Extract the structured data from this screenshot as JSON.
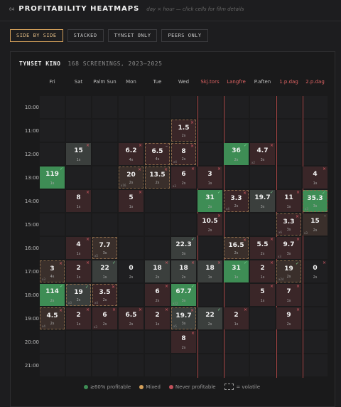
{
  "header": {
    "section_num": "04",
    "title": "PROFITABILITY HEATMAPS",
    "subtitle": "day × hour — click cells for film details"
  },
  "tabs": [
    {
      "label": "SIDE BY SIDE",
      "active": true
    },
    {
      "label": "STACKED",
      "active": false
    },
    {
      "label": "TYNSET ONLY",
      "active": false
    },
    {
      "label": "PEERS ONLY",
      "active": false
    }
  ],
  "panel": {
    "title": "TYNSET KINO",
    "meta": "168 SCREENINGS, 2023–2025"
  },
  "columns": [
    {
      "label": "Fri",
      "hl": false
    },
    {
      "label": "Sat",
      "hl": false
    },
    {
      "label": "Palm Sun",
      "hl": false
    },
    {
      "label": "Mon",
      "hl": false
    },
    {
      "label": "Tue",
      "hl": false
    },
    {
      "label": "Wed",
      "hl": false
    },
    {
      "label": "Skj.tors",
      "hl": true
    },
    {
      "label": "Langfre",
      "hl": true
    },
    {
      "label": "P.aften",
      "hl": false
    },
    {
      "label": "1.p.dag",
      "hl": true
    },
    {
      "label": "2.p.dag",
      "hl": true
    }
  ],
  "hl_line_columns": [
    6,
    7,
    9,
    10
  ],
  "rows": [
    "10:00",
    "11:00",
    "12:00",
    "13:00",
    "14:00",
    "15:00",
    "16:00",
    "17:00",
    "18:00",
    "19:00",
    "20:00",
    "21:00"
  ],
  "cells": [
    {
      "r": 1,
      "c": 5,
      "v": "1.5",
      "n": "2s",
      "type": "loss",
      "mark": "x",
      "vol": true
    },
    {
      "r": 2,
      "c": 1,
      "v": "15",
      "n": "1s",
      "type": "gray",
      "mark": "x",
      "vol": false
    },
    {
      "r": 2,
      "c": 3,
      "v": "6.2",
      "n": "4s",
      "type": "loss",
      "mark": "x",
      "vol": false
    },
    {
      "r": 2,
      "c": 4,
      "v": "6.5",
      "n": "4s",
      "type": "loss",
      "mark": "d",
      "vol": true
    },
    {
      "r": 2,
      "c": 5,
      "v": "8",
      "n": "2s",
      "type": "loss",
      "mark": "x",
      "vol": true,
      "t": "x4"
    },
    {
      "r": 2,
      "c": 7,
      "v": "36",
      "n": "2s",
      "type": "profit",
      "mark": "c",
      "vol": false
    },
    {
      "r": 2,
      "c": 8,
      "v": "4.7",
      "n": "3s",
      "type": "loss",
      "mark": "x",
      "vol": false,
      "t": "x2"
    },
    {
      "r": 3,
      "c": 0,
      "v": "119",
      "n": "1s",
      "type": "profit",
      "mark": "c",
      "vol": false
    },
    {
      "r": 3,
      "c": 3,
      "v": "20",
      "n": "2s",
      "type": "mixed",
      "mark": "x",
      "vol": true,
      "t": "x16"
    },
    {
      "r": 3,
      "c": 4,
      "v": "13.5",
      "n": "2s",
      "type": "mixed",
      "mark": "x",
      "vol": true
    },
    {
      "r": 3,
      "c": 5,
      "v": "6",
      "n": "2s",
      "type": "loss",
      "mark": "x",
      "vol": false,
      "t": "x3"
    },
    {
      "r": 3,
      "c": 6,
      "v": "3",
      "n": "1s",
      "type": "loss",
      "mark": "x",
      "vol": false
    },
    {
      "r": 3,
      "c": 10,
      "v": "4",
      "n": "1s",
      "type": "loss",
      "mark": "x",
      "vol": false
    },
    {
      "r": 4,
      "c": 1,
      "v": "8",
      "n": "1s",
      "type": "loss",
      "mark": "x",
      "vol": false
    },
    {
      "r": 4,
      "c": 3,
      "v": "5",
      "n": "1s",
      "type": "loss",
      "mark": "x",
      "vol": false
    },
    {
      "r": 4,
      "c": 6,
      "v": "31",
      "n": "2s",
      "type": "profit",
      "mark": "c",
      "vol": false
    },
    {
      "r": 4,
      "c": 7,
      "v": "3.3",
      "n": "2s",
      "type": "loss",
      "mark": "x",
      "vol": true,
      "t": "x4"
    },
    {
      "r": 4,
      "c": 8,
      "v": "19.7",
      "n": "3s",
      "type": "gray",
      "mark": "c",
      "vol": false
    },
    {
      "r": 4,
      "c": 9,
      "v": "11",
      "n": "1s",
      "type": "loss",
      "mark": "x",
      "vol": false
    },
    {
      "r": 4,
      "c": 10,
      "v": "35.3",
      "n": "3s",
      "type": "profit",
      "mark": "c",
      "vol": true,
      "t": "x3"
    },
    {
      "r": 5,
      "c": 6,
      "v": "10.5",
      "n": "2s",
      "type": "loss",
      "mark": "x",
      "vol": false
    },
    {
      "r": 5,
      "c": 9,
      "v": "3.3",
      "n": "3s",
      "type": "loss",
      "mark": "x",
      "vol": true,
      "t": "x6"
    },
    {
      "r": 5,
      "c": 10,
      "v": "15",
      "n": "2s",
      "type": "mixed",
      "mark": "d",
      "vol": false,
      "t": "x3"
    },
    {
      "r": 6,
      "c": 1,
      "v": "4",
      "n": "1s",
      "type": "loss",
      "mark": "x",
      "vol": false
    },
    {
      "r": 6,
      "c": 2,
      "v": "7.7",
      "n": "3s",
      "type": "mixed",
      "mark": "",
      "vol": true,
      "t": "x5"
    },
    {
      "r": 6,
      "c": 5,
      "v": "22.3",
      "n": "3s",
      "type": "gray",
      "mark": "c",
      "vol": false
    },
    {
      "r": 6,
      "c": 7,
      "v": "16.5",
      "n": "2s",
      "type": "mixed",
      "mark": "x",
      "vol": true
    },
    {
      "r": 6,
      "c": 8,
      "v": "5.5",
      "n": "2s",
      "type": "loss",
      "mark": "x",
      "vol": false
    },
    {
      "r": 6,
      "c": 9,
      "v": "9.7",
      "n": "3s",
      "type": "loss",
      "mark": "x",
      "vol": false,
      "t": "x3"
    },
    {
      "r": 7,
      "c": 0,
      "v": "3",
      "n": "4s",
      "type": "mixed",
      "mark": "x",
      "vol": true,
      "t": "x3"
    },
    {
      "r": 7,
      "c": 1,
      "v": "2",
      "n": "1s",
      "type": "loss",
      "mark": "x",
      "vol": false
    },
    {
      "r": 7,
      "c": 2,
      "v": "22",
      "n": "1s",
      "type": "gray",
      "mark": "c",
      "vol": false
    },
    {
      "r": 7,
      "c": 3,
      "v": "0",
      "n": "2s",
      "type": "none",
      "mark": "",
      "vol": false
    },
    {
      "r": 7,
      "c": 4,
      "v": "18",
      "n": "2s",
      "type": "gray",
      "mark": "x",
      "vol": false
    },
    {
      "r": 7,
      "c": 5,
      "v": "18",
      "n": "2s",
      "type": "gray",
      "mark": "x",
      "vol": false
    },
    {
      "r": 7,
      "c": 6,
      "v": "18",
      "n": "1s",
      "type": "gray",
      "mark": "x",
      "vol": false
    },
    {
      "r": 7,
      "c": 7,
      "v": "31",
      "n": "1s",
      "type": "profit",
      "mark": "c",
      "vol": false
    },
    {
      "r": 7,
      "c": 8,
      "v": "2",
      "n": "1s",
      "type": "loss",
      "mark": "x",
      "vol": false
    },
    {
      "r": 7,
      "c": 9,
      "v": "19",
      "n": "2s",
      "type": "mixed",
      "mark": "c",
      "vol": true,
      "t": "x24"
    },
    {
      "r": 7,
      "c": 10,
      "v": "0",
      "n": "2s",
      "type": "none",
      "mark": "x",
      "vol": false
    },
    {
      "r": 8,
      "c": 0,
      "v": "114",
      "n": "2s",
      "type": "profit",
      "mark": "c",
      "vol": false
    },
    {
      "r": 8,
      "c": 1,
      "v": "19",
      "n": "2s",
      "type": "gray",
      "mark": "c",
      "vol": true,
      "t": "x3"
    },
    {
      "r": 8,
      "c": 2,
      "v": "3.5",
      "n": "2s",
      "type": "loss",
      "mark": "x",
      "vol": true,
      "t": "x4"
    },
    {
      "r": 8,
      "c": 4,
      "v": "6",
      "n": "2s",
      "type": "loss",
      "mark": "x",
      "vol": false
    },
    {
      "r": 8,
      "c": 5,
      "v": "67.7",
      "n": "3s",
      "type": "profit",
      "mark": "c",
      "vol": false,
      "t": "x22"
    },
    {
      "r": 8,
      "c": 8,
      "v": "5",
      "n": "1s",
      "type": "loss",
      "mark": "x",
      "vol": false
    },
    {
      "r": 8,
      "c": 9,
      "v": "7",
      "n": "1s",
      "type": "loss",
      "mark": "x",
      "vol": false
    },
    {
      "r": 9,
      "c": 0,
      "v": "4.5",
      "n": "2s",
      "type": "mixed",
      "mark": "x",
      "vol": true,
      "t": "x4"
    },
    {
      "r": 9,
      "c": 1,
      "v": "2",
      "n": "1s",
      "type": "loss",
      "mark": "x",
      "vol": false
    },
    {
      "r": 9,
      "c": 2,
      "v": "6",
      "n": "2s",
      "type": "loss",
      "mark": "x",
      "vol": false,
      "t": "x3"
    },
    {
      "r": 9,
      "c": 3,
      "v": "6.5",
      "n": "2s",
      "type": "loss",
      "mark": "x",
      "vol": false
    },
    {
      "r": 9,
      "c": 4,
      "v": "2",
      "n": "1s",
      "type": "loss",
      "mark": "x",
      "vol": false
    },
    {
      "r": 9,
      "c": 5,
      "v": "19.7",
      "n": "3s",
      "type": "gray",
      "mark": "x",
      "vol": true,
      "t": "x5"
    },
    {
      "r": 9,
      "c": 6,
      "v": "22",
      "n": "2s",
      "type": "gray",
      "mark": "c",
      "vol": false
    },
    {
      "r": 9,
      "c": 7,
      "v": "2",
      "n": "1s",
      "type": "loss",
      "mark": "x",
      "vol": false
    },
    {
      "r": 9,
      "c": 9,
      "v": "9",
      "n": "2s",
      "type": "loss",
      "mark": "x",
      "vol": false
    },
    {
      "r": 10,
      "c": 5,
      "v": "8",
      "n": "2s",
      "type": "loss",
      "mark": "x",
      "vol": false
    }
  ],
  "legend": [
    {
      "label": "≥60% profitable",
      "color": "#3e8d55"
    },
    {
      "label": "Mixed",
      "color": "#d4a05a"
    },
    {
      "label": "Never profitable",
      "color": "#c0505a"
    }
  ],
  "legend_volatile": {
    "box": "dashed",
    "label": "= volatile"
  }
}
